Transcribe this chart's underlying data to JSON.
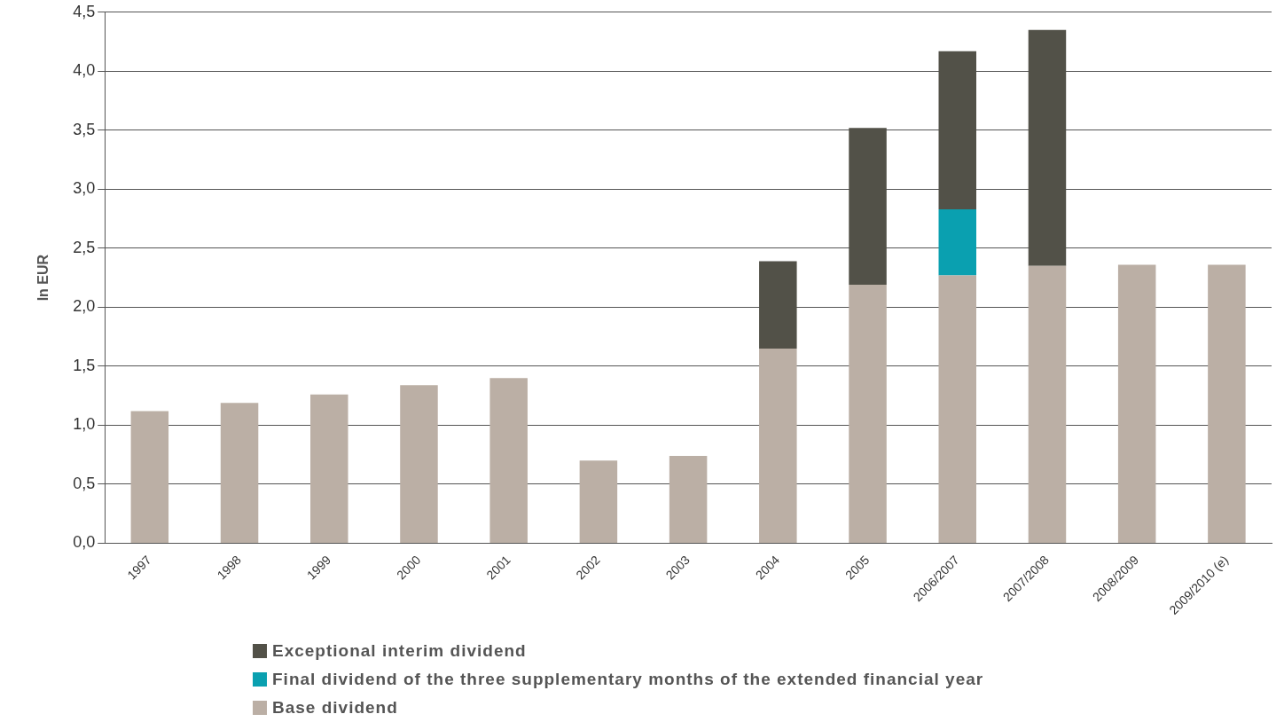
{
  "chart_data": {
    "type": "bar",
    "stacked": true,
    "ylabel": "In EUR",
    "categories": [
      "1997",
      "1998",
      "1999",
      "2000",
      "2001",
      "2002",
      "2003",
      "2004",
      "2005",
      "2006/2007",
      "2007/2008",
      "2008/2009",
      "2009/2010 (e)"
    ],
    "series": [
      {
        "name": "Base dividend",
        "color": "#bbafa5",
        "values": [
          1.12,
          1.19,
          1.26,
          1.34,
          1.4,
          0.7,
          0.74,
          1.65,
          2.19,
          2.27,
          2.35,
          2.36,
          2.36
        ]
      },
      {
        "name": "Final dividend of the three supplementary months of the extended financial year",
        "color": "#0aa0b0",
        "values": [
          null,
          null,
          null,
          null,
          null,
          null,
          null,
          null,
          null,
          0.56,
          null,
          null,
          null
        ]
      },
      {
        "name": "Exceptional interim dividend",
        "color": "#525148",
        "values": [
          null,
          null,
          null,
          null,
          null,
          null,
          null,
          0.74,
          1.33,
          1.34,
          2.0,
          null,
          null
        ]
      }
    ],
    "ylim": [
      0,
      4.5
    ],
    "yticks": [
      {
        "value": 0,
        "label": "0,0"
      },
      {
        "value": 0.5,
        "label": "0,5"
      },
      {
        "value": 1,
        "label": "1,0"
      },
      {
        "value": 1.5,
        "label": "1,5"
      },
      {
        "value": 2,
        "label": "2,0"
      },
      {
        "value": 2.5,
        "label": "2,5"
      },
      {
        "value": 3,
        "label": "3,0"
      },
      {
        "value": 3.5,
        "label": "3,5"
      },
      {
        "value": 4,
        "label": "4,0"
      },
      {
        "value": 4.5,
        "label": "4,5"
      }
    ],
    "grid": "y",
    "legend": "bottom"
  }
}
